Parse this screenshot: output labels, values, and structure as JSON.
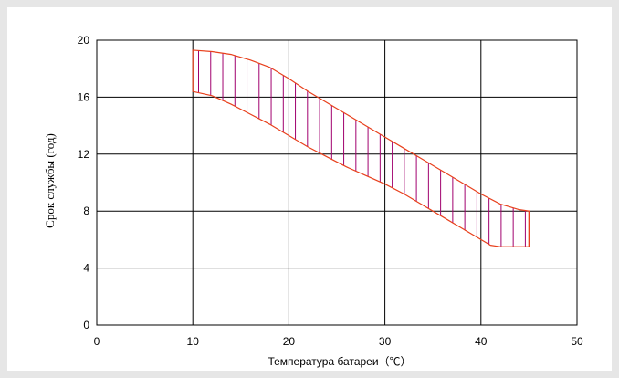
{
  "chart_data": {
    "type": "area",
    "title": "",
    "xlabel": "Температура батареи（℃）",
    "ylabel": "Срок службы (год)",
    "xlim": [
      0,
      50
    ],
    "ylim": [
      0,
      20
    ],
    "x_ticks": [
      0,
      10,
      20,
      30,
      40,
      50
    ],
    "y_ticks": [
      0,
      4,
      8,
      12,
      16,
      20
    ],
    "x_tick_labels": [
      "0",
      "10",
      "20",
      "30",
      "40",
      "50"
    ],
    "y_tick_labels": [
      "0",
      "4",
      "8",
      "12",
      "16",
      "20"
    ],
    "grid": true,
    "band_color": "#e8401c",
    "hatch_color": "#a0006e",
    "series": [
      {
        "role": "upper",
        "x": [
          10,
          12,
          14,
          16,
          18,
          20,
          22,
          24,
          26,
          28,
          30,
          32,
          34,
          36,
          38,
          40,
          42,
          44,
          45
        ],
        "y": [
          19.3,
          19.2,
          19.0,
          18.6,
          18.1,
          17.3,
          16.4,
          15.6,
          14.8,
          14.0,
          13.2,
          12.4,
          11.6,
          10.8,
          10.0,
          9.2,
          8.5,
          8.1,
          8.0
        ]
      },
      {
        "role": "lower",
        "x": [
          10,
          12,
          14,
          16,
          18,
          20,
          22,
          24,
          26,
          28,
          30,
          32,
          34,
          36,
          38,
          40,
          41,
          42,
          44,
          45
        ],
        "y": [
          16.4,
          16.1,
          15.5,
          14.8,
          14.1,
          13.3,
          12.5,
          11.8,
          11.1,
          10.5,
          9.9,
          9.2,
          8.4,
          7.6,
          6.8,
          6.0,
          5.6,
          5.5,
          5.5,
          5.5
        ]
      }
    ]
  }
}
